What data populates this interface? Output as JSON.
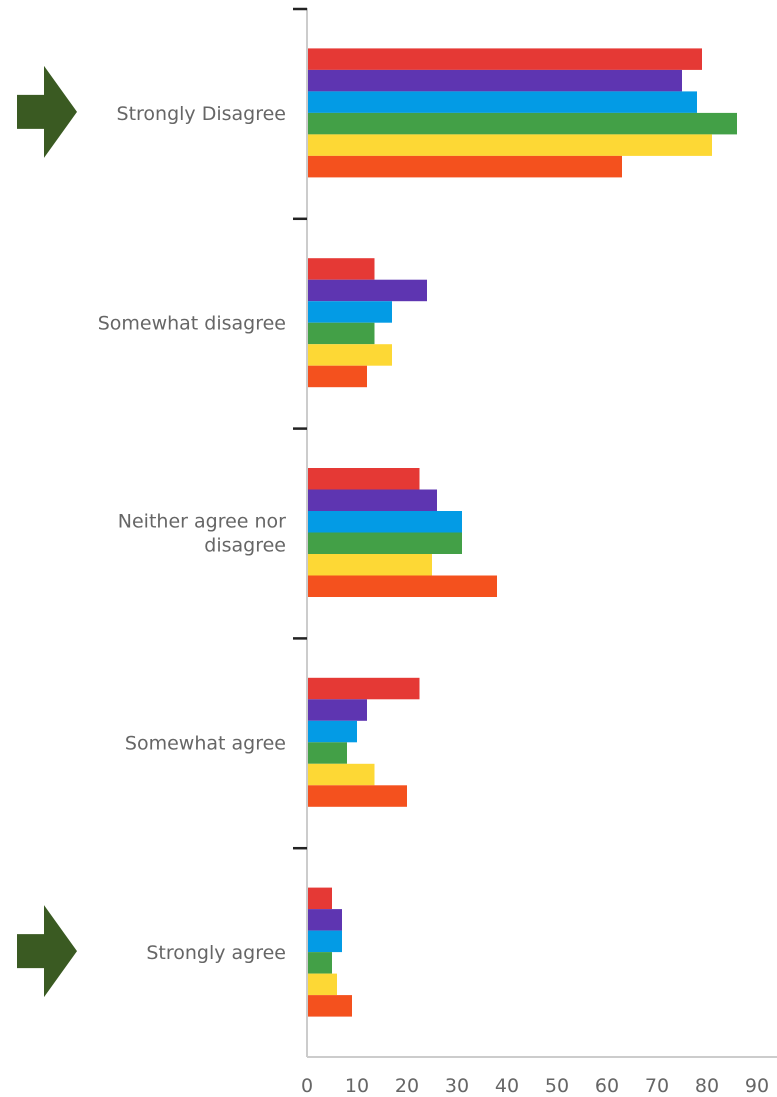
{
  "chart_data": {
    "type": "bar",
    "orientation": "horizontal",
    "title": "",
    "xlabel": "",
    "ylabel": "",
    "categories": [
      "Strongly Disagree",
      "Somewhat disagree",
      "Neither agree nor disagree",
      "Somewhat agree",
      "Strongly agree"
    ],
    "category_lines": [
      [
        "Strongly Disagree"
      ],
      [
        "Somewhat disagree"
      ],
      [
        "Neither agree nor",
        "disagree"
      ],
      [
        "Somewhat agree"
      ],
      [
        "Strongly agree"
      ]
    ],
    "series": [
      {
        "color": "#e53935",
        "values": [
          79,
          13.5,
          22.5,
          22.5,
          5
        ]
      },
      {
        "color": "#5e35b1",
        "values": [
          75,
          24,
          26,
          12,
          7
        ]
      },
      {
        "color": "#039be5",
        "values": [
          78,
          17,
          31,
          10,
          7
        ]
      },
      {
        "color": "#43a047",
        "values": [
          86,
          13.5,
          31,
          8,
          5
        ]
      },
      {
        "color": "#fdd835",
        "values": [
          81,
          17,
          25,
          13.5,
          6
        ]
      },
      {
        "color": "#f4511e",
        "values": [
          63,
          12,
          38,
          20,
          9
        ]
      }
    ],
    "xlim": [
      0,
      90
    ],
    "xticks": [
      "0",
      "10",
      "20",
      "30",
      "40",
      "50",
      "60",
      "70",
      "80",
      "90"
    ],
    "grid": false,
    "legend": "none",
    "annotations": [
      {
        "type": "arrow-icon",
        "color": "#3a5a22",
        "points_to": "Strongly Disagree"
      },
      {
        "type": "arrow-icon",
        "color": "#3a5a22",
        "points_to": "Strongly agree"
      }
    ]
  }
}
